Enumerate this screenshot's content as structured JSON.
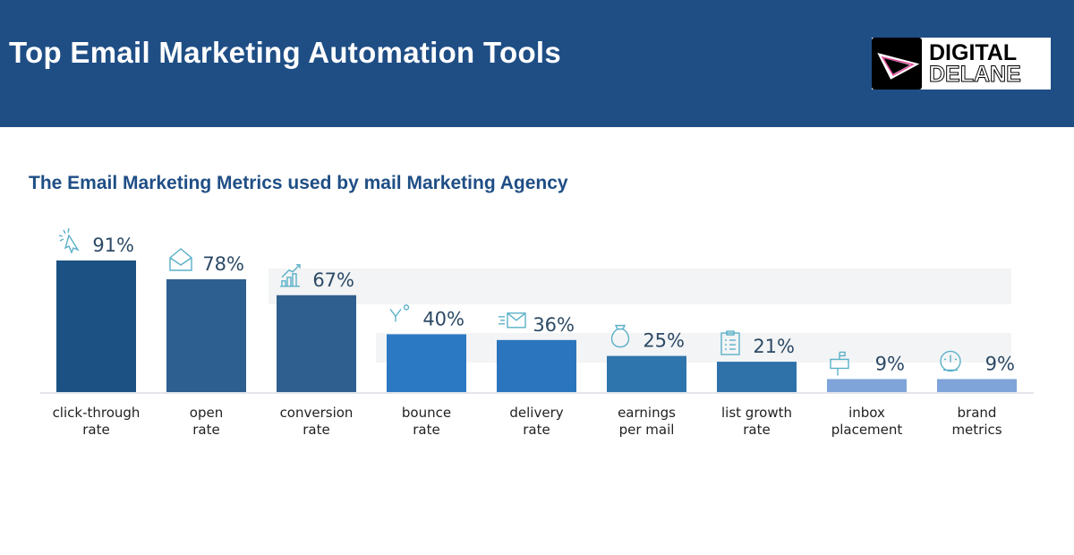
{
  "header": {
    "title": "Top Email Marketing Automation Tools",
    "logo_text": [
      "DIGITAL",
      "DELANE"
    ]
  },
  "colors": {
    "header_bg": "#1f4e85",
    "subtitle": "#1f4e85",
    "value_label": "#2c4a66",
    "icon": "#5ab0c8"
  },
  "chart_data": {
    "type": "bar",
    "title": "The Email Marketing Metrics used by mail Marketing Agency",
    "categories": [
      "click-through rate",
      "open rate",
      "conversion rate",
      "bounce rate",
      "delivery rate",
      "earnings per mail",
      "list growth rate",
      "inbox placement",
      "brand metrics"
    ],
    "category_lines": [
      [
        "click-through",
        "rate"
      ],
      [
        "open",
        "rate"
      ],
      [
        "conversion",
        "rate"
      ],
      [
        "bounce",
        "rate"
      ],
      [
        "delivery",
        "rate"
      ],
      [
        "earnings",
        "per mail"
      ],
      [
        "list growth",
        "rate"
      ],
      [
        "inbox",
        "placement"
      ],
      [
        "brand",
        "metrics"
      ]
    ],
    "values": [
      91,
      78,
      67,
      40,
      36,
      25,
      21,
      9,
      9
    ],
    "value_labels": [
      "91%",
      "78%",
      "67%",
      "40%",
      "36%",
      "25%",
      "21%",
      "9%",
      "9%"
    ],
    "icons": [
      "cursor-click-icon",
      "open-envelope-icon",
      "growth-chart-icon",
      "bounce-icon",
      "fast-mail-icon",
      "money-bag-icon",
      "clipboard-list-icon",
      "mailbox-icon",
      "gauge-icon"
    ],
    "bar_colors": [
      "#1b5283",
      "#2d5f90",
      "#2f5f8f",
      "#2b79c2",
      "#2a75bd",
      "#2f75ad",
      "#2f72aa",
      "#7fa4d9",
      "#7fa4d9"
    ],
    "ylim": [
      0,
      100
    ],
    "grid": false
  }
}
